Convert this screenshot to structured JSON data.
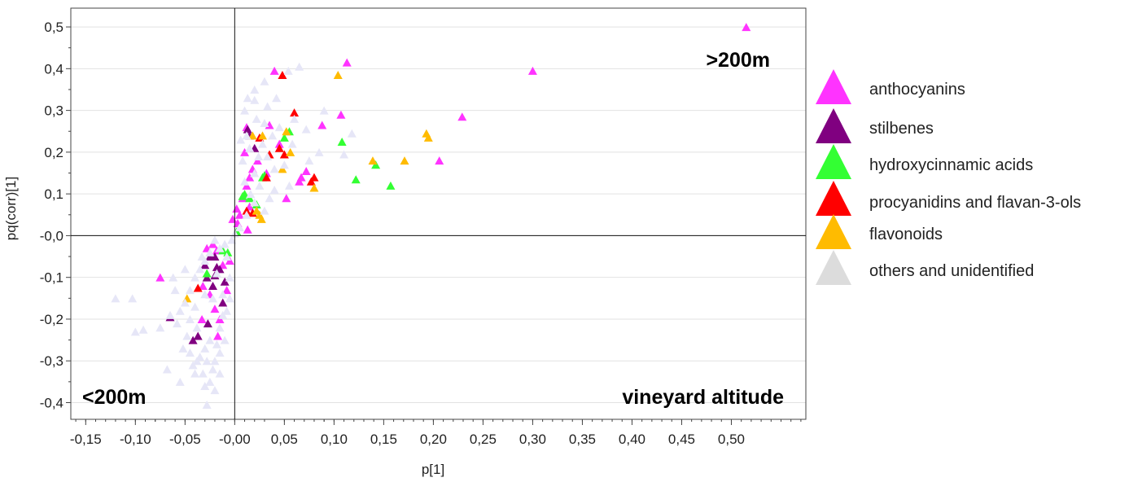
{
  "chart_data": {
    "type": "scatter",
    "xlabel": "p[1]",
    "ylabel": "pq(corr)[1]",
    "xlim": [
      -0.165,
      0.575
    ],
    "ylim": [
      -0.44,
      0.545
    ],
    "x_ticks": [
      -0.15,
      -0.1,
      -0.05,
      0.0,
      0.05,
      0.1,
      0.15,
      0.2,
      0.25,
      0.3,
      0.35,
      0.4,
      0.45,
      0.5
    ],
    "x_tick_labels": [
      "-0,15",
      "-0,10",
      "-0,05",
      "-0,00",
      "0,05",
      "0,10",
      "0,15",
      "0,20",
      "0,25",
      "0,30",
      "0,35",
      "0,40",
      "0,45",
      "0,50"
    ],
    "y_ticks": [
      -0.4,
      -0.3,
      -0.2,
      -0.1,
      0.0,
      0.1,
      0.2,
      0.3,
      0.4,
      0.5
    ],
    "y_tick_labels": [
      "-0,4",
      "-0,3",
      "-0,2",
      "-0,1",
      "-0,0",
      "0,1",
      "0,2",
      "0,3",
      "0,4",
      "0,5"
    ],
    "grid": "horizontal",
    "legend_position": "right",
    "annotations": [
      {
        "text": ">200m",
        "position": "top-right"
      },
      {
        "text": "<200m",
        "position": "bottom-left"
      },
      {
        "text": "vineyard altitude",
        "position": "bottom-right"
      }
    ],
    "series": [
      {
        "name": "anthocyanins",
        "color": "#ff33ff",
        "points": [
          [
            0.515,
            0.5
          ],
          [
            0.3,
            0.395
          ],
          [
            0.113,
            0.415
          ],
          [
            0.04,
            0.395
          ],
          [
            0.107,
            0.29
          ],
          [
            0.088,
            0.265
          ],
          [
            0.229,
            0.285
          ],
          [
            0.206,
            0.18
          ],
          [
            0.035,
            0.265
          ],
          [
            0.012,
            0.26
          ],
          [
            0.045,
            0.22
          ],
          [
            0.01,
            0.2
          ],
          [
            0.023,
            0.18
          ],
          [
            0.067,
            0.14
          ],
          [
            0.065,
            0.13
          ],
          [
            0.052,
            0.09
          ],
          [
            0.032,
            0.15
          ],
          [
            0.015,
            0.14
          ],
          [
            0.012,
            0.12
          ],
          [
            0.008,
            0.09
          ],
          [
            0.005,
            0.05
          ],
          [
            0.003,
            0.03
          ],
          [
            -0.002,
            0.04
          ],
          [
            0.015,
            0.07
          ],
          [
            0.002,
            0.065
          ],
          [
            0.013,
            0.015
          ],
          [
            -0.075,
            -0.1
          ],
          [
            -0.022,
            -0.02
          ],
          [
            -0.018,
            -0.035
          ],
          [
            -0.012,
            -0.07
          ],
          [
            -0.008,
            -0.13
          ],
          [
            -0.032,
            -0.12
          ],
          [
            -0.025,
            -0.14
          ],
          [
            -0.02,
            -0.175
          ],
          [
            -0.033,
            -0.2
          ],
          [
            -0.017,
            -0.24
          ],
          [
            -0.028,
            -0.03
          ],
          [
            -0.005,
            -0.06
          ],
          [
            -0.015,
            -0.2
          ],
          [
            0.018,
            0.16
          ],
          [
            0.072,
            0.155
          ]
        ]
      },
      {
        "name": "stilbenes",
        "color": "#800080",
        "points": [
          [
            0.013,
            0.255
          ],
          [
            -0.065,
            -0.195
          ],
          [
            -0.042,
            -0.25
          ],
          [
            -0.037,
            -0.24
          ],
          [
            -0.022,
            -0.12
          ],
          [
            -0.02,
            -0.095
          ],
          [
            -0.03,
            -0.07
          ],
          [
            -0.025,
            -0.05
          ],
          [
            -0.018,
            -0.075
          ],
          [
            -0.015,
            -0.08
          ],
          [
            -0.01,
            -0.11
          ],
          [
            -0.028,
            -0.1
          ],
          [
            -0.012,
            -0.16
          ],
          [
            -0.027,
            -0.21
          ],
          [
            -0.02,
            -0.05
          ],
          [
            0.015,
            0.24
          ],
          [
            0.02,
            0.21
          ]
        ]
      },
      {
        "name": "hydroxycinnamic acids",
        "color": "#33ff33",
        "points": [
          [
            0.108,
            0.225
          ],
          [
            0.122,
            0.135
          ],
          [
            0.142,
            0.17
          ],
          [
            0.157,
            0.12
          ],
          [
            0.055,
            0.25
          ],
          [
            0.05,
            0.235
          ],
          [
            0.028,
            0.14
          ],
          [
            0.01,
            0.1
          ],
          [
            0.008,
            0.095
          ],
          [
            0.022,
            0.075
          ],
          [
            0.015,
            0.09
          ],
          [
            0.002,
            0.01
          ],
          [
            -0.028,
            -0.09
          ],
          [
            -0.012,
            -0.035
          ],
          [
            -0.007,
            -0.04
          ],
          [
            0.03,
            0.145
          ]
        ]
      },
      {
        "name": "procyanidins and flavan-3-ols",
        "color": "#ff0000",
        "points": [
          [
            0.048,
            0.385
          ],
          [
            0.06,
            0.295
          ],
          [
            0.045,
            0.21
          ],
          [
            0.035,
            0.195
          ],
          [
            0.05,
            0.195
          ],
          [
            0.08,
            0.14
          ],
          [
            0.077,
            0.13
          ],
          [
            0.032,
            0.14
          ],
          [
            0.025,
            0.235
          ],
          [
            0.018,
            0.055
          ],
          [
            0.012,
            0.06
          ],
          [
            -0.037,
            -0.125
          ]
        ]
      },
      {
        "name": "flavonoids",
        "color": "#ffbb00",
        "points": [
          [
            0.104,
            0.385
          ],
          [
            0.193,
            0.245
          ],
          [
            0.195,
            0.235
          ],
          [
            0.171,
            0.18
          ],
          [
            0.139,
            0.18
          ],
          [
            0.056,
            0.2
          ],
          [
            0.048,
            0.16
          ],
          [
            0.08,
            0.115
          ],
          [
            0.052,
            0.25
          ],
          [
            0.028,
            0.24
          ],
          [
            0.025,
            0.05
          ],
          [
            0.027,
            0.04
          ],
          [
            0.022,
            0.06
          ],
          [
            0.018,
            0.24
          ],
          [
            -0.048,
            -0.15
          ]
        ]
      },
      {
        "name": "others and unidentified",
        "color": "#e6e6f7",
        "points": [
          [
            0.065,
            0.405
          ],
          [
            0.054,
            0.395
          ],
          [
            0.03,
            0.37
          ],
          [
            0.033,
            0.31
          ],
          [
            0.02,
            0.325
          ],
          [
            0.013,
            0.33
          ],
          [
            0.01,
            0.3
          ],
          [
            0.022,
            0.28
          ],
          [
            0.03,
            0.27
          ],
          [
            0.045,
            0.26
          ],
          [
            0.06,
            0.28
          ],
          [
            0.072,
            0.255
          ],
          [
            0.038,
            0.24
          ],
          [
            0.028,
            0.22
          ],
          [
            0.015,
            0.21
          ],
          [
            0.008,
            0.18
          ],
          [
            0.033,
            0.19
          ],
          [
            0.05,
            0.17
          ],
          [
            0.04,
            0.16
          ],
          [
            0.02,
            0.15
          ],
          [
            0.01,
            0.13
          ],
          [
            0.025,
            0.12
          ],
          [
            0.04,
            0.11
          ],
          [
            0.055,
            0.12
          ],
          [
            0.035,
            0.09
          ],
          [
            0.02,
            0.08
          ],
          [
            0.012,
            0.05
          ],
          [
            0.005,
            0.02
          ],
          [
            0.0,
            0.005
          ],
          [
            0.075,
            0.18
          ],
          [
            0.09,
            0.3
          ],
          [
            0.118,
            0.245
          ],
          [
            0.11,
            0.195
          ],
          [
            0.085,
            0.2
          ],
          [
            0.02,
            0.35
          ],
          [
            0.042,
            0.33
          ],
          [
            0.058,
            0.22
          ],
          [
            0.012,
            0.24
          ],
          [
            0.006,
            0.23
          ],
          [
            0.024,
            0.19
          ],
          [
            0.016,
            0.1
          ],
          [
            0.03,
            0.06
          ],
          [
            -0.003,
            -0.01
          ],
          [
            -0.01,
            -0.02
          ],
          [
            -0.02,
            -0.01
          ],
          [
            -0.015,
            -0.03
          ],
          [
            -0.025,
            -0.04
          ],
          [
            -0.03,
            -0.06
          ],
          [
            -0.008,
            -0.05
          ],
          [
            -0.018,
            -0.09
          ],
          [
            -0.035,
            -0.08
          ],
          [
            -0.04,
            -0.1
          ],
          [
            -0.045,
            -0.13
          ],
          [
            -0.05,
            -0.16
          ],
          [
            -0.04,
            -0.17
          ],
          [
            -0.03,
            -0.14
          ],
          [
            -0.022,
            -0.15
          ],
          [
            -0.012,
            -0.14
          ],
          [
            -0.008,
            -0.18
          ],
          [
            -0.015,
            -0.22
          ],
          [
            -0.025,
            -0.25
          ],
          [
            -0.03,
            -0.27
          ],
          [
            -0.035,
            -0.29
          ],
          [
            -0.028,
            -0.3
          ],
          [
            -0.02,
            -0.3
          ],
          [
            -0.038,
            -0.3
          ],
          [
            -0.042,
            -0.31
          ],
          [
            -0.032,
            -0.33
          ],
          [
            -0.025,
            -0.35
          ],
          [
            -0.03,
            -0.36
          ],
          [
            -0.02,
            -0.37
          ],
          [
            -0.028,
            -0.405
          ],
          [
            -0.04,
            -0.33
          ],
          [
            -0.055,
            -0.35
          ],
          [
            -0.068,
            -0.32
          ],
          [
            -0.075,
            -0.22
          ],
          [
            -0.1,
            -0.23
          ],
          [
            -0.12,
            -0.15
          ],
          [
            -0.103,
            -0.15
          ],
          [
            -0.092,
            -0.225
          ],
          [
            -0.052,
            -0.27
          ],
          [
            -0.058,
            -0.21
          ],
          [
            -0.062,
            -0.1
          ],
          [
            -0.055,
            -0.18
          ],
          [
            -0.045,
            -0.2
          ],
          [
            -0.018,
            -0.26
          ],
          [
            -0.01,
            -0.25
          ],
          [
            -0.015,
            -0.28
          ],
          [
            -0.022,
            -0.32
          ],
          [
            -0.005,
            -0.15
          ],
          [
            -0.005,
            -0.1
          ],
          [
            -0.012,
            -0.19
          ],
          [
            -0.048,
            -0.24
          ],
          [
            -0.038,
            -0.22
          ],
          [
            -0.033,
            -0.05
          ],
          [
            -0.05,
            -0.08
          ],
          [
            -0.06,
            -0.13
          ],
          [
            -0.065,
            -0.19
          ],
          [
            -0.045,
            -0.28
          ],
          [
            -0.015,
            -0.33
          ]
        ]
      }
    ]
  }
}
